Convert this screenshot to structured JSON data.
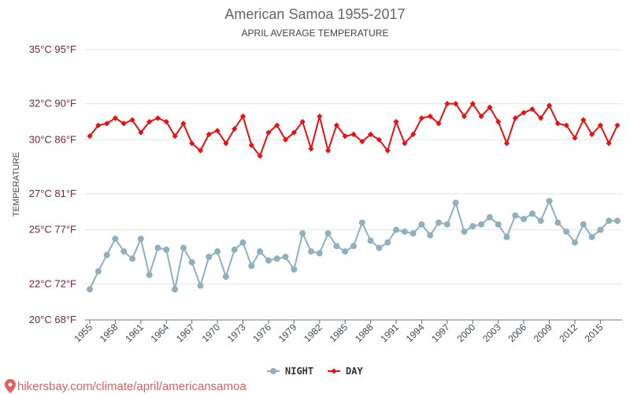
{
  "chart_data": {
    "type": "line",
    "title": "American Samoa 1955-2017",
    "subtitle": "APRIL AVERAGE TEMPERATURE",
    "ylabel": "TEMPERATURE",
    "y_ticks": [
      {
        "value": 20,
        "label": "20°C 68°F"
      },
      {
        "value": 22,
        "label": "22°C 72°F"
      },
      {
        "value": 25,
        "label": "25°C 77°F"
      },
      {
        "value": 27,
        "label": "27°C 81°F"
      },
      {
        "value": 30,
        "label": "30°C 86°F"
      },
      {
        "value": 32,
        "label": "32°C 90°F"
      },
      {
        "value": 35,
        "label": "35°C 95°F"
      }
    ],
    "ylim": [
      20,
      35
    ],
    "xlim": [
      1955,
      2017
    ],
    "x_ticks": [
      "1955",
      "1958",
      "1961",
      "1964",
      "1967",
      "1970",
      "1973",
      "1976",
      "1979",
      "1982",
      "1985",
      "1988",
      "1991",
      "1994",
      "1997",
      "2000",
      "2003",
      "2006",
      "2009",
      "2012",
      "2015"
    ],
    "x": [
      1955,
      1956,
      1957,
      1958,
      1959,
      1960,
      1961,
      1962,
      1963,
      1964,
      1965,
      1966,
      1967,
      1968,
      1969,
      1970,
      1971,
      1972,
      1973,
      1974,
      1975,
      1976,
      1977,
      1978,
      1979,
      1980,
      1981,
      1982,
      1983,
      1984,
      1985,
      1986,
      1987,
      1988,
      1989,
      1990,
      1991,
      1992,
      1993,
      1994,
      1995,
      1996,
      1997,
      1998,
      1999,
      2000,
      2001,
      2002,
      2003,
      2004,
      2005,
      2006,
      2007,
      2008,
      2009,
      2010,
      2011,
      2012,
      2013,
      2014,
      2015,
      2016,
      2017
    ],
    "series": [
      {
        "name": "NIGHT",
        "color": "#8fb0bd",
        "values": [
          21.7,
          22.7,
          23.6,
          24.5,
          23.8,
          23.4,
          24.5,
          22.5,
          24.0,
          23.9,
          21.7,
          24.0,
          23.2,
          21.9,
          23.5,
          23.8,
          22.4,
          23.9,
          24.3,
          23.0,
          23.8,
          23.3,
          23.4,
          23.5,
          22.8,
          24.8,
          23.8,
          23.7,
          24.8,
          24.1,
          23.8,
          24.1,
          25.4,
          24.4,
          24.0,
          24.3,
          25.0,
          24.9,
          24.8,
          25.3,
          24.7,
          25.4,
          25.3,
          26.5,
          24.9,
          25.2,
          25.3,
          25.7,
          25.3,
          24.6,
          25.8,
          25.6,
          25.9,
          25.5,
          26.6,
          25.4,
          24.9,
          24.3,
          25.3,
          24.6,
          25.0,
          25.5,
          25.5
        ]
      },
      {
        "name": "DAY",
        "color": "#e81010",
        "values": [
          30.2,
          30.8,
          30.9,
          31.2,
          30.9,
          31.1,
          30.4,
          31.0,
          31.2,
          31.0,
          30.2,
          30.9,
          29.8,
          29.4,
          30.3,
          30.5,
          29.8,
          30.6,
          31.3,
          29.7,
          29.1,
          30.4,
          30.8,
          30.0,
          30.4,
          31.0,
          29.5,
          31.3,
          29.4,
          30.8,
          30.2,
          30.3,
          29.9,
          30.3,
          30.0,
          29.4,
          31.0,
          29.8,
          30.3,
          31.2,
          31.3,
          30.9,
          32.0,
          32.0,
          31.3,
          32.0,
          31.3,
          31.8,
          31.0,
          29.8,
          31.2,
          31.5,
          31.7,
          31.2,
          31.9,
          30.9,
          30.8,
          30.1,
          31.1,
          30.3,
          30.8,
          29.8,
          30.8
        ]
      }
    ],
    "legend_position": "bottom-center",
    "grid": true
  },
  "watermark": "hikersbay.com/climate/april/americansamoa"
}
